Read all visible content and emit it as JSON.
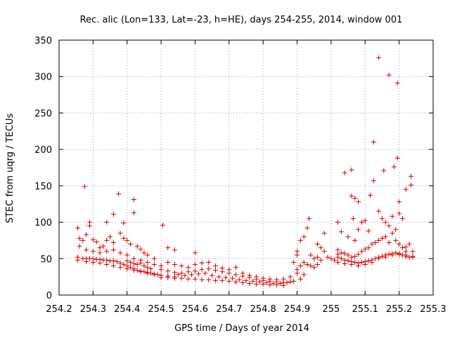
{
  "chart_data": {
    "type": "scatter",
    "title": "Rec. alic (Lon=133, Lat=-23, h=HE), days 254-255, 2014, window 001",
    "xlabel": "GPS time / Days of year 2014",
    "ylabel": "STEC from uqrg / TECUs",
    "xlim": [
      254.2,
      255.3
    ],
    "ylim": [
      0,
      350
    ],
    "xticks": [
      254.2,
      254.3,
      254.4,
      254.5,
      254.6,
      254.7,
      254.8,
      254.9,
      255.0,
      255.1,
      255.2,
      255.3
    ],
    "xtick_labels": [
      "254.2",
      "254.3",
      "254.4",
      "254.5",
      "254.6",
      "254.7",
      "254.8",
      "254.9",
      "255",
      "255.1",
      "255.2",
      "255.3"
    ],
    "yticks": [
      0,
      50,
      100,
      150,
      200,
      250,
      300,
      350
    ],
    "ytick_labels": [
      "0",
      "50",
      "100",
      "150",
      "200",
      "250",
      "300",
      "350"
    ],
    "grid": true,
    "marker": "+",
    "color": "#d40000",
    "points": [
      [
        254.255,
        92
      ],
      [
        254.275,
        149
      ],
      [
        254.29,
        100
      ],
      [
        254.29,
        95
      ],
      [
        254.375,
        139
      ],
      [
        254.42,
        131
      ],
      [
        254.42,
        113
      ],
      [
        254.39,
        99
      ],
      [
        254.36,
        111
      ],
      [
        254.34,
        100
      ],
      [
        254.505,
        96
      ],
      [
        254.6,
        58
      ],
      [
        254.52,
        65
      ],
      [
        254.54,
        62
      ],
      [
        254.26,
        78
      ],
      [
        254.27,
        75
      ],
      [
        254.28,
        83
      ],
      [
        254.3,
        76
      ],
      [
        254.31,
        73
      ],
      [
        254.32,
        65
      ],
      [
        254.33,
        67
      ],
      [
        254.34,
        75
      ],
      [
        254.35,
        80
      ],
      [
        254.36,
        72
      ],
      [
        254.38,
        85
      ],
      [
        254.39,
        78
      ],
      [
        254.4,
        75
      ],
      [
        254.41,
        70
      ],
      [
        254.43,
        67
      ],
      [
        254.44,
        63
      ],
      [
        254.45,
        58
      ],
      [
        254.46,
        55
      ],
      [
        254.48,
        50
      ],
      [
        254.26,
        67
      ],
      [
        254.28,
        62
      ],
      [
        254.3,
        60
      ],
      [
        254.32,
        58
      ],
      [
        254.34,
        60
      ],
      [
        254.36,
        62
      ],
      [
        254.38,
        58
      ],
      [
        254.4,
        55
      ],
      [
        254.42,
        50
      ],
      [
        254.44,
        48
      ],
      [
        254.46,
        45
      ],
      [
        254.48,
        42
      ],
      [
        254.5,
        40
      ],
      [
        254.255,
        52
      ],
      [
        254.27,
        50
      ],
      [
        254.28,
        50
      ],
      [
        254.29,
        50
      ],
      [
        254.3,
        50
      ],
      [
        254.31,
        49
      ],
      [
        254.32,
        49
      ],
      [
        254.33,
        48
      ],
      [
        254.34,
        48
      ],
      [
        254.35,
        47
      ],
      [
        254.36,
        47
      ],
      [
        254.37,
        46
      ],
      [
        254.38,
        44
      ],
      [
        254.39,
        42
      ],
      [
        254.4,
        40
      ],
      [
        254.41,
        38
      ],
      [
        254.42,
        36
      ],
      [
        254.43,
        34
      ],
      [
        254.44,
        33
      ],
      [
        254.45,
        32
      ],
      [
        254.46,
        31
      ],
      [
        254.47,
        30
      ],
      [
        254.48,
        29
      ],
      [
        254.49,
        28
      ],
      [
        254.255,
        48
      ],
      [
        254.28,
        46
      ],
      [
        254.3,
        45
      ],
      [
        254.32,
        44
      ],
      [
        254.34,
        42
      ],
      [
        254.36,
        40
      ],
      [
        254.38,
        38
      ],
      [
        254.4,
        36
      ],
      [
        254.42,
        34
      ],
      [
        254.44,
        32
      ],
      [
        254.46,
        30
      ],
      [
        254.48,
        28
      ],
      [
        254.5,
        27
      ],
      [
        254.52,
        26
      ],
      [
        254.54,
        25
      ],
      [
        254.4,
        47
      ],
      [
        254.41,
        45
      ],
      [
        254.42,
        43
      ],
      [
        254.43,
        42
      ],
      [
        254.44,
        44
      ],
      [
        254.45,
        40
      ],
      [
        254.46,
        38
      ],
      [
        254.47,
        36
      ],
      [
        254.5,
        24
      ],
      [
        254.52,
        24
      ],
      [
        254.54,
        23
      ],
      [
        254.56,
        23
      ],
      [
        254.58,
        22
      ],
      [
        254.6,
        22
      ],
      [
        254.62,
        21
      ],
      [
        254.64,
        21
      ],
      [
        254.66,
        20
      ],
      [
        254.68,
        20
      ],
      [
        254.7,
        19
      ],
      [
        254.72,
        18
      ],
      [
        254.74,
        17
      ],
      [
        254.76,
        16
      ],
      [
        254.78,
        15
      ],
      [
        254.8,
        15
      ],
      [
        254.82,
        14
      ],
      [
        254.84,
        14
      ],
      [
        254.86,
        13
      ],
      [
        254.5,
        35
      ],
      [
        254.52,
        33
      ],
      [
        254.54,
        31
      ],
      [
        254.56,
        30
      ],
      [
        254.58,
        32
      ],
      [
        254.6,
        33
      ],
      [
        254.62,
        35
      ],
      [
        254.64,
        36
      ],
      [
        254.66,
        34
      ],
      [
        254.68,
        32
      ],
      [
        254.7,
        30
      ],
      [
        254.72,
        28
      ],
      [
        254.74,
        26
      ],
      [
        254.76,
        24
      ],
      [
        254.78,
        22
      ],
      [
        254.8,
        20
      ],
      [
        254.82,
        19
      ],
      [
        254.84,
        18
      ],
      [
        254.86,
        17
      ],
      [
        254.88,
        18
      ],
      [
        254.52,
        45
      ],
      [
        254.54,
        42
      ],
      [
        254.56,
        40
      ],
      [
        254.58,
        38
      ],
      [
        254.6,
        42
      ],
      [
        254.62,
        44
      ],
      [
        254.64,
        45
      ],
      [
        254.66,
        40
      ],
      [
        254.68,
        37
      ],
      [
        254.7,
        35
      ],
      [
        254.72,
        38
      ],
      [
        254.74,
        30
      ],
      [
        254.76,
        27
      ],
      [
        254.78,
        25
      ],
      [
        254.8,
        23
      ],
      [
        254.82,
        22
      ],
      [
        254.84,
        21
      ],
      [
        254.86,
        22
      ],
      [
        254.88,
        25
      ],
      [
        254.9,
        30
      ],
      [
        254.55,
        28
      ],
      [
        254.57,
        27
      ],
      [
        254.59,
        28
      ],
      [
        254.61,
        29
      ],
      [
        254.63,
        30
      ],
      [
        254.65,
        27
      ],
      [
        254.67,
        25
      ],
      [
        254.69,
        24
      ],
      [
        254.71,
        23
      ],
      [
        254.73,
        21
      ],
      [
        254.75,
        20
      ],
      [
        254.77,
        19
      ],
      [
        254.79,
        18
      ],
      [
        254.81,
        17
      ],
      [
        254.83,
        16
      ],
      [
        254.85,
        16
      ],
      [
        254.87,
        17
      ],
      [
        254.89,
        19
      ],
      [
        254.91,
        22
      ],
      [
        254.92,
        28
      ],
      [
        254.89,
        45
      ],
      [
        254.9,
        55
      ],
      [
        254.9,
        60
      ],
      [
        254.91,
        75
      ],
      [
        254.92,
        80
      ],
      [
        254.93,
        92
      ],
      [
        254.935,
        105
      ],
      [
        254.94,
        55
      ],
      [
        254.95,
        50
      ],
      [
        254.96,
        52
      ],
      [
        254.97,
        48
      ],
      [
        254.98,
        60
      ],
      [
        254.98,
        85
      ],
      [
        254.97,
        65
      ],
      [
        254.96,
        70
      ],
      [
        254.9,
        35
      ],
      [
        254.91,
        40
      ],
      [
        254.92,
        45
      ],
      [
        254.93,
        42
      ],
      [
        254.94,
        40
      ],
      [
        254.95,
        38
      ],
      [
        254.96,
        42
      ],
      [
        255.02,
        100
      ],
      [
        255.03,
        87
      ],
      [
        255.04,
        168
      ],
      [
        255.06,
        172
      ],
      [
        255.06,
        136
      ],
      [
        255.07,
        133
      ],
      [
        255.08,
        128
      ],
      [
        255.065,
        105
      ],
      [
        255.05,
        80
      ],
      [
        255.07,
        75
      ],
      [
        255.08,
        90
      ],
      [
        255.09,
        100
      ],
      [
        255.1,
        102
      ],
      [
        255.11,
        88
      ],
      [
        255.115,
        137
      ],
      [
        255.125,
        157
      ],
      [
        255.125,
        210
      ],
      [
        255.14,
        326
      ],
      [
        255.17,
        302
      ],
      [
        255.195,
        291
      ],
      [
        255.195,
        188
      ],
      [
        255.185,
        176
      ],
      [
        255.155,
        171
      ],
      [
        255.14,
        115
      ],
      [
        255.15,
        105
      ],
      [
        255.16,
        100
      ],
      [
        255.17,
        95
      ],
      [
        255.18,
        108
      ],
      [
        255.19,
        90
      ],
      [
        255.2,
        128
      ],
      [
        255.21,
        105
      ],
      [
        255.22,
        145
      ],
      [
        255.235,
        163
      ],
      [
        255.235,
        151
      ],
      [
        255.2,
        112
      ],
      [
        255.02,
        62
      ],
      [
        255.03,
        58
      ],
      [
        255.04,
        57
      ],
      [
        255.05,
        55
      ],
      [
        255.06,
        52
      ],
      [
        255.07,
        53
      ],
      [
        255.08,
        56
      ],
      [
        255.09,
        60
      ],
      [
        255.1,
        63
      ],
      [
        255.11,
        65
      ],
      [
        255.12,
        70
      ],
      [
        255.13,
        72
      ],
      [
        255.14,
        75
      ],
      [
        255.15,
        78
      ],
      [
        255.16,
        80
      ],
      [
        255.17,
        72
      ],
      [
        255.18,
        85
      ],
      [
        255.19,
        75
      ],
      [
        255.2,
        70
      ],
      [
        255.21,
        65
      ],
      [
        255.22,
        60
      ],
      [
        255.02,
        52
      ],
      [
        255.03,
        50
      ],
      [
        255.04,
        48
      ],
      [
        255.05,
        47
      ],
      [
        255.06,
        46
      ],
      [
        255.07,
        45
      ],
      [
        255.08,
        44
      ],
      [
        255.09,
        45
      ],
      [
        255.1,
        46
      ],
      [
        255.11,
        47
      ],
      [
        255.12,
        48
      ],
      [
        255.13,
        50
      ],
      [
        255.14,
        52
      ],
      [
        255.15,
        53
      ],
      [
        255.16,
        55
      ],
      [
        255.17,
        56
      ],
      [
        255.18,
        57
      ],
      [
        255.19,
        58
      ],
      [
        255.2,
        56
      ],
      [
        255.21,
        55
      ],
      [
        255.22,
        53
      ],
      [
        255.23,
        52
      ],
      [
        255.24,
        52
      ],
      [
        255.02,
        45
      ],
      [
        255.04,
        43
      ],
      [
        255.06,
        42
      ],
      [
        255.08,
        40
      ],
      [
        255.1,
        42
      ],
      [
        255.12,
        45
      ],
      [
        255.14,
        50
      ],
      [
        255.16,
        52
      ],
      [
        255.18,
        55
      ],
      [
        255.2,
        57
      ],
      [
        255.22,
        55
      ],
      [
        255.24,
        53
      ],
      [
        255.0,
        50
      ],
      [
        255.01,
        48
      ],
      [
        254.99,
        52
      ],
      [
        255.02,
        56
      ],
      [
        255.24,
        60
      ],
      [
        255.23,
        70
      ],
      [
        255.22,
        66
      ]
    ]
  }
}
